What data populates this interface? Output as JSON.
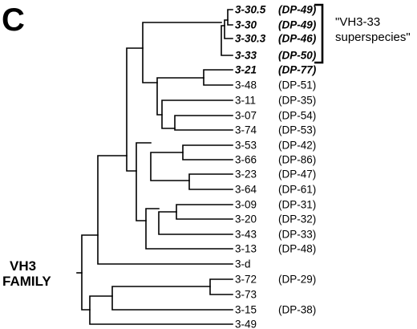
{
  "panel_label": "C",
  "group_label": [
    "\"VH3-33",
    "superspecies\""
  ],
  "root_label": [
    "VH3",
    "FAMILY"
  ],
  "leaves": [
    {
      "name": "3-30.5",
      "dp": "(DP-49)",
      "highlight": true
    },
    {
      "name": "3-30",
      "dp": "(DP-49)",
      "highlight": true
    },
    {
      "name": "3-30.3",
      "dp": "(DP-46)",
      "highlight": true
    },
    {
      "name": "3-33",
      "dp": "(DP-50)",
      "highlight": true
    },
    {
      "name": "3-21",
      "dp": "(DP-77)",
      "highlight": true
    },
    {
      "name": "3-48",
      "dp": "(DP-51)",
      "highlight": false
    },
    {
      "name": "3-11",
      "dp": "(DP-35)",
      "highlight": false
    },
    {
      "name": "3-07",
      "dp": "(DP-54)",
      "highlight": false
    },
    {
      "name": "3-74",
      "dp": "(DP-53)",
      "highlight": false
    },
    {
      "name": "3-53",
      "dp": "(DP-42)",
      "highlight": false
    },
    {
      "name": "3-66",
      "dp": "(DP-86)",
      "highlight": false
    },
    {
      "name": "3-23",
      "dp": "(DP-47)",
      "highlight": false
    },
    {
      "name": "3-64",
      "dp": "(DP-61)",
      "highlight": false
    },
    {
      "name": "3-09",
      "dp": "(DP-31)",
      "highlight": false
    },
    {
      "name": "3-20",
      "dp": "(DP-32)",
      "highlight": false
    },
    {
      "name": "3-43",
      "dp": "(DP-33)",
      "highlight": false
    },
    {
      "name": "3-13",
      "dp": "(DP-48)",
      "highlight": false
    },
    {
      "name": "3-d",
      "dp": "",
      "highlight": false
    },
    {
      "name": "3-72",
      "dp": "(DP-29)",
      "highlight": false
    },
    {
      "name": "3-73",
      "dp": "",
      "highlight": false
    },
    {
      "name": "3-15",
      "dp": "(DP-38)",
      "highlight": false
    },
    {
      "name": "3-49",
      "dp": "",
      "highlight": false
    }
  ]
}
